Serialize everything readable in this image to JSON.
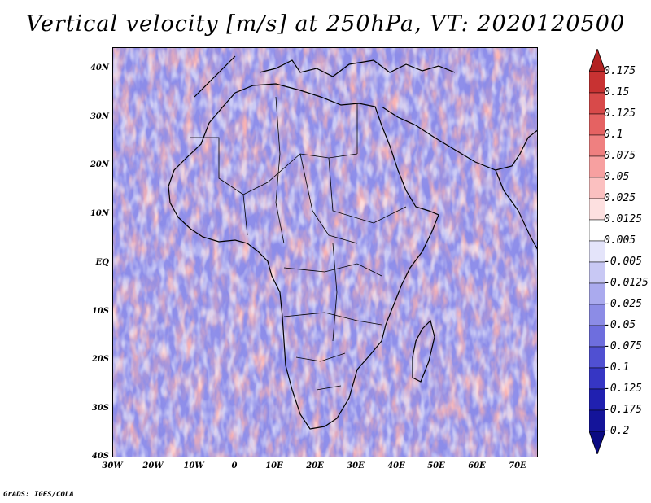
{
  "title": "Vertical velocity [m/s] at 250hPa, VT: 2020120500",
  "credit": "GrADS: IGES/COLA",
  "lat_labels": [
    "40N",
    "30N",
    "20N",
    "10N",
    "EQ",
    "10S",
    "20S",
    "30S",
    "40S"
  ],
  "lon_labels": [
    "30W",
    "20W",
    "10W",
    "0",
    "10E",
    "20E",
    "30E",
    "40E",
    "50E",
    "60E",
    "70E"
  ],
  "colorbar": {
    "labels": [
      "0.175",
      "0.15",
      "0.125",
      "0.1",
      "0.075",
      "0.05",
      "0.025",
      "0.0125",
      "0.005",
      "-0.005",
      "-0.0125",
      "-0.025",
      "-0.05",
      "-0.075",
      "-0.1",
      "-0.125",
      "-0.175",
      "-0.2"
    ],
    "colors": [
      "#b22222",
      "#c83232",
      "#d84a4a",
      "#e56262",
      "#ef8080",
      "#f7a0a0",
      "#fbc0c0",
      "#fde0e0",
      "#ffffff",
      "#e4e4fa",
      "#c8c8f4",
      "#aaaaee",
      "#8c8ce6",
      "#6e6ede",
      "#5050d2",
      "#3636c4",
      "#2020b0",
      "#14149a",
      "#0a0a82"
    ]
  },
  "map": {
    "extent": {
      "lon_min": -30,
      "lon_max": 76,
      "lat_min": -40,
      "lat_max": 45
    }
  }
}
